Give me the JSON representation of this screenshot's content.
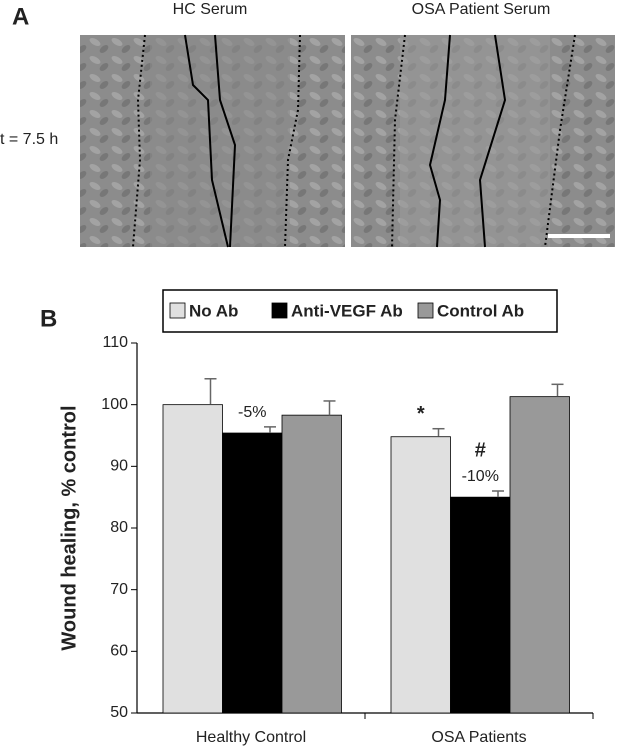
{
  "panel_a": {
    "label": "A",
    "titles": [
      "HC Serum",
      "OSA Patient Serum"
    ],
    "time": "t = 7.5 h"
  },
  "chart_data": {
    "type": "bar",
    "panel_label": "B",
    "y_label": "Wound healing, % control",
    "categories": [
      "Healthy Control",
      "OSA Patients"
    ],
    "series": [
      {
        "name": "No Ab",
        "color": "#e0e0e0",
        "values": [
          100,
          94.8
        ],
        "errors": [
          4.2,
          1.3
        ],
        "markers": [
          null,
          "*"
        ]
      },
      {
        "name": "Anti-VEGF Ab",
        "color": "#000000",
        "values": [
          95.4,
          85
        ],
        "errors": [
          1.0,
          1.0
        ],
        "markers": [
          null,
          "#"
        ],
        "annotations": [
          "-5%",
          "-10%"
        ]
      },
      {
        "name": "Control Ab",
        "color": "#999999",
        "values": [
          98.3,
          101.3
        ],
        "errors": [
          2.3,
          2.0
        ]
      }
    ],
    "ylim": [
      50,
      110
    ],
    "yticks": [
      50,
      60,
      70,
      80,
      90,
      100,
      110
    ],
    "legend": "top"
  }
}
